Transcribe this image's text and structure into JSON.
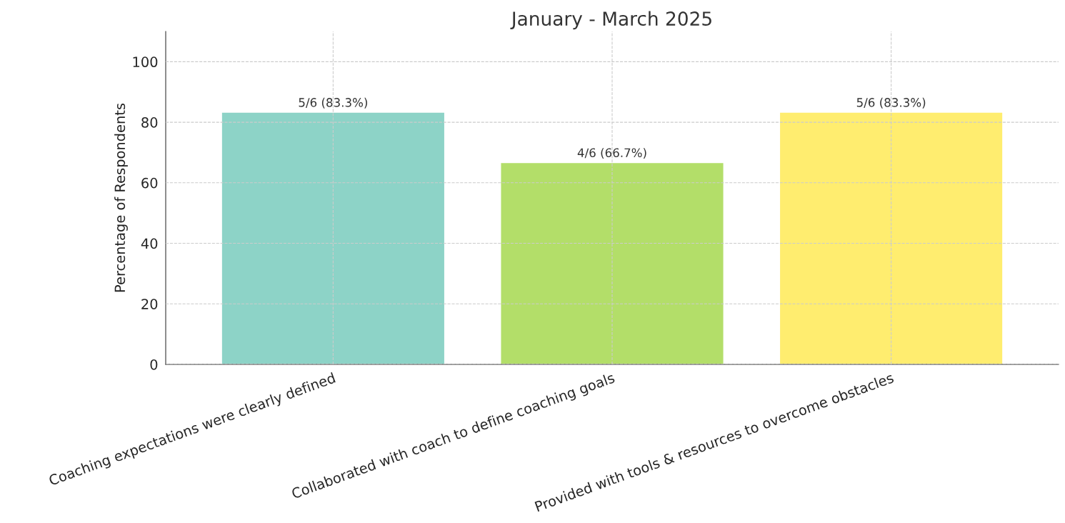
{
  "chart_data": {
    "type": "bar",
    "title": "January - March 2025",
    "ylabel": "Percentage of Respondents",
    "categories": [
      "Coaching expectations were clearly defined",
      "Collaborated with coach to define coaching goals",
      "Provided with tools & resources to overcome obstacles"
    ],
    "values": [
      83.3,
      66.7,
      83.3
    ],
    "colors": [
      "#8dd3c7",
      "#b3de69",
      "#ffed6f"
    ],
    "value_labels": [
      "5/6 (83.3%)",
      "4/6 (66.7%)",
      "5/6 (83.3%)"
    ],
    "ylim": [
      0,
      110
    ],
    "yticks": [
      0,
      20,
      40,
      60,
      80,
      100
    ],
    "grid": true,
    "legend": false
  }
}
